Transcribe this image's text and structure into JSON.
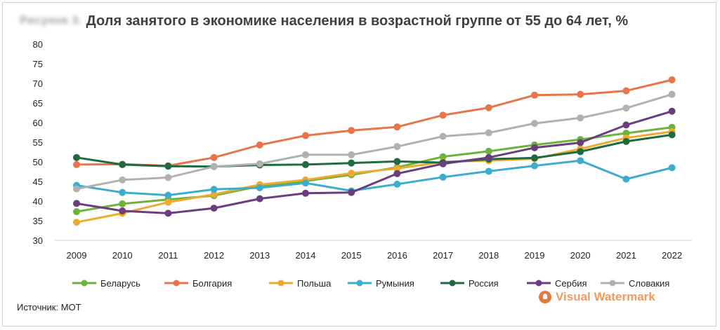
{
  "figure_label": "Рисунок 3.",
  "source": "Источник: МОТ",
  "watermark": "Visual Watermark",
  "chart_data": {
    "type": "line",
    "title": "Доля занятого в экономике населения в возрастной группе от 55 до 64 лет, %",
    "xlabel": "",
    "ylabel": "",
    "ylim": [
      30,
      80
    ],
    "yticks": [
      30,
      35,
      40,
      45,
      50,
      55,
      60,
      65,
      70,
      75,
      80
    ],
    "grid": false,
    "legend_position": "bottom",
    "categories": [
      "2009",
      "2010",
      "2011",
      "2012",
      "2013",
      "2014",
      "2015",
      "2016",
      "2017",
      "2018",
      "2019",
      "2020",
      "2021",
      "2022"
    ],
    "series": [
      {
        "name": "Беларусь",
        "color": "#6bb33a",
        "values": [
          37.3,
          39.3,
          40.4,
          41.4,
          43.8,
          45.1,
          46.7,
          48.6,
          51.3,
          52.7,
          54.3,
          55.7,
          57.3,
          58.8
        ]
      },
      {
        "name": "Болгария",
        "color": "#e8744a",
        "values": [
          49.3,
          49.4,
          49.0,
          51.1,
          54.3,
          56.7,
          58.0,
          58.9,
          61.9,
          63.8,
          67.0,
          67.2,
          68.1,
          70.9
        ]
      },
      {
        "name": "Польша",
        "color": "#f0a92f",
        "values": [
          34.6,
          36.9,
          39.7,
          41.7,
          44.2,
          45.4,
          47.1,
          48.3,
          50.0,
          50.3,
          50.8,
          53.3,
          56.1,
          57.7
        ]
      },
      {
        "name": "Румыния",
        "color": "#3eaccc",
        "values": [
          44.0,
          42.2,
          41.5,
          43.0,
          43.4,
          44.6,
          42.6,
          44.3,
          46.1,
          47.6,
          49.0,
          50.3,
          45.6,
          48.5
        ]
      },
      {
        "name": "Россия",
        "color": "#1f6a3f",
        "values": [
          51.1,
          49.3,
          48.9,
          48.8,
          49.2,
          49.3,
          49.7,
          50.1,
          49.8,
          50.7,
          51.0,
          52.6,
          55.2,
          56.9
        ]
      },
      {
        "name": "Сербия",
        "color": "#6b3d7e",
        "values": [
          39.4,
          37.5,
          36.9,
          38.2,
          40.6,
          42.0,
          42.2,
          47.0,
          49.5,
          51.1,
          53.6,
          54.9,
          59.4,
          62.9
        ]
      },
      {
        "name": "Словакия",
        "color": "#b1b1b1",
        "values": [
          43.1,
          45.4,
          46.0,
          48.8,
          49.5,
          51.8,
          51.8,
          53.9,
          56.5,
          57.4,
          59.8,
          61.2,
          63.7,
          67.2
        ]
      }
    ]
  }
}
